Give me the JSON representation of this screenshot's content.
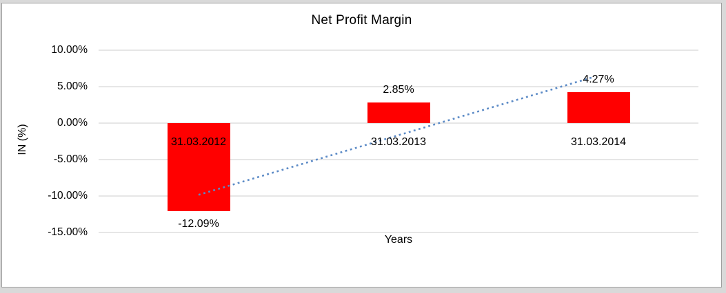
{
  "chart": {
    "title": "Net Profit Margin",
    "xlabel": "Years",
    "ylabel": "IN (%)"
  },
  "chart_data": {
    "type": "bar",
    "title": "Net Profit Margin",
    "xlabel": "Years",
    "ylabel": "IN (%)",
    "categories": [
      "31.03.2012",
      "31.03.2013",
      "31.03.2014"
    ],
    "values": [
      -12.09,
      2.85,
      4.27
    ],
    "data_labels": [
      "-12.09%",
      "2.85%",
      "4.27%"
    ],
    "ylim": [
      -15,
      10
    ],
    "ytick_interval": 5,
    "ytick_labels": [
      "10.00%",
      "5.00%",
      "0.00%",
      "-5.00%",
      "-10.00%",
      "-15.00%"
    ],
    "ytick_values": [
      10,
      5,
      0,
      -5,
      -10,
      -15
    ],
    "grid": true,
    "legend": "none",
    "bar_color": "#FF0000",
    "gridline_color": "#d6d6d6",
    "trendline": {
      "type": "linear",
      "style": "dotted",
      "color": "#5B8AC6"
    }
  }
}
